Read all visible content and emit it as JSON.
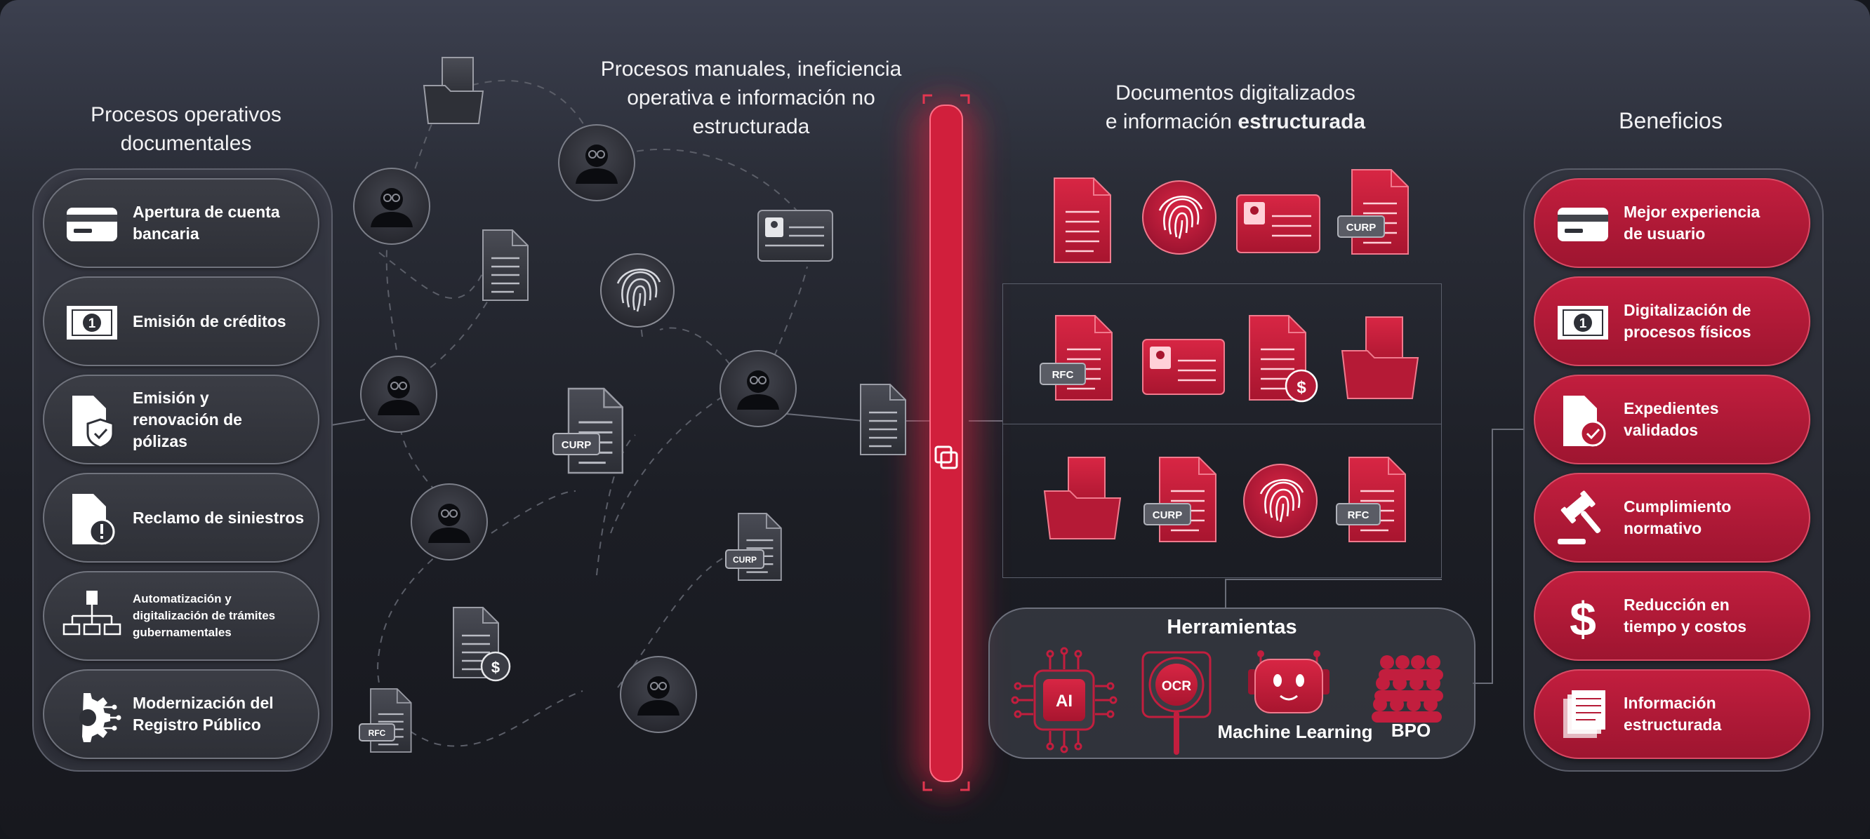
{
  "titles": {
    "left": [
      "Procesos operativos",
      "documentales"
    ],
    "middle": [
      "Procesos manuales, ineficiencia",
      "operativa e información no",
      "estructurada"
    ],
    "right_line1": "Documentos digitalizados",
    "right_line2_plain": "e información ",
    "right_line2_bold": "estructurada",
    "benefits": "Beneficios"
  },
  "processes": [
    {
      "icon": "card-icon",
      "lines": [
        "Apertura de cuenta",
        "bancaria"
      ]
    },
    {
      "icon": "banknote-icon",
      "lines": [
        "Emisión de créditos"
      ]
    },
    {
      "icon": "policy-shield-icon",
      "lines": [
        "Emisión y",
        "renovación de",
        "pólizas"
      ]
    },
    {
      "icon": "claim-alert-icon",
      "lines": [
        "Reclamo de siniestros"
      ]
    },
    {
      "icon": "org-chart-icon",
      "lines": [
        "Automatización y",
        "digitalización de trámites",
        "gubernamentales"
      ]
    },
    {
      "icon": "gear-circuit-icon",
      "lines": [
        "Modernización del",
        "Registro Público"
      ]
    }
  ],
  "benefits": [
    {
      "icon": "card-icon",
      "lines": [
        "Mejor experiencia",
        "de usuario"
      ]
    },
    {
      "icon": "banknote-icon",
      "lines": [
        "Digitalización de",
        "procesos físicos"
      ]
    },
    {
      "icon": "file-check-icon",
      "lines": [
        "Expedientes",
        "validados"
      ]
    },
    {
      "icon": "gavel-icon",
      "lines": [
        "Cumplimiento",
        "normativo"
      ]
    },
    {
      "icon": "dollar-icon",
      "lines": [
        "Reducción en",
        "tiempo y costos"
      ]
    },
    {
      "icon": "stacked-docs-icon",
      "lines": [
        "Información",
        "estructurada"
      ]
    }
  ],
  "doc_tags": {
    "curp": "CURP",
    "rfc": "RFC",
    "dollar": "$",
    "banknote_number": "1"
  },
  "tools": {
    "title": "Herramientas",
    "ai": "AI",
    "ocr": "OCR",
    "ml": "Machine Learning",
    "bpo": "BPO"
  },
  "colors": {
    "accent": "#c21e3e",
    "accent_dark": "#9e1530",
    "background": "#1c1e25",
    "text": "#ffffff"
  }
}
